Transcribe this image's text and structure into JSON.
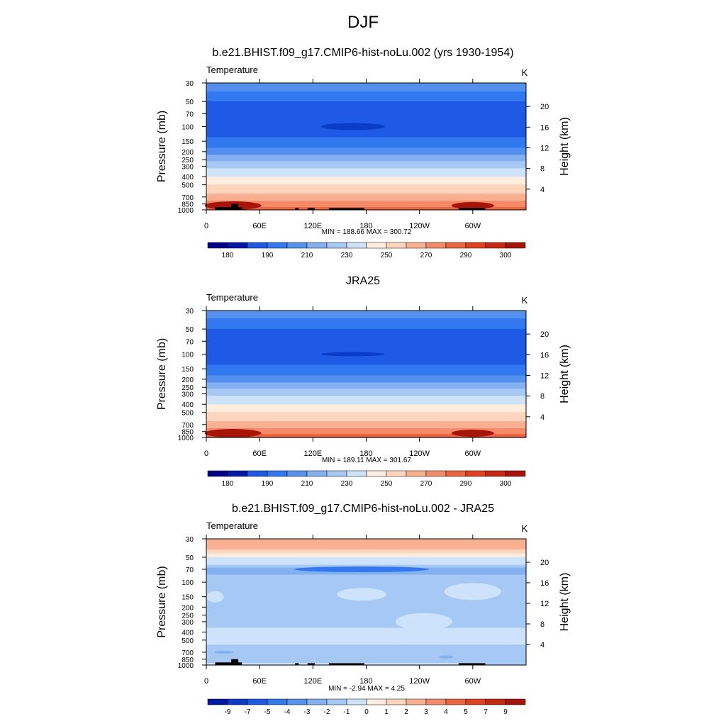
{
  "figure_title": "DJF",
  "palette_rgb": [
    "#00008c",
    "#0019a8",
    "#0a3cc8",
    "#1e5ae6",
    "#3278f0",
    "#5591ef",
    "#82b0f0",
    "#a6c8f5",
    "#cde2fb",
    "#ffeedd",
    "#fdd5bd",
    "#f9b090",
    "#f48a68",
    "#ec6440",
    "#e0421e",
    "#c82810",
    "#a81408",
    "#800000"
  ],
  "common": {
    "variable_label": "Temperature",
    "x_ticks": [
      "0",
      "60E",
      "120E",
      "180",
      "120W",
      "60W"
    ],
    "y_left_label": "Pressure (mb)",
    "y_left_ticks": [
      "30",
      "50",
      "70",
      "100",
      "150",
      "200",
      "250",
      "300",
      "400",
      "500",
      "700",
      "850",
      "1000"
    ],
    "y_right_label": "Height (km)",
    "y_right_ticks": [
      "20",
      "16",
      "12",
      "8",
      "4"
    ]
  },
  "panels": [
    {
      "title": "b.e21.BHIST.f09_g17.CMIP6-hist-noLu.002 (yrs 1930-1954)",
      "variable": "Temperature",
      "units": "K",
      "stats": "MIN = 188.66  MAX = 300.72",
      "colorbar_labels": [
        "180",
        "190",
        "210",
        "230",
        "250",
        "270",
        "290",
        "300"
      ]
    },
    {
      "title": "JRA25",
      "variable": "Temperature",
      "units": "K",
      "stats": "MIN = 189.11  MAX = 301.67",
      "colorbar_labels": [
        "180",
        "190",
        "210",
        "230",
        "250",
        "270",
        "290",
        "300"
      ]
    },
    {
      "title": "b.e21.BHIST.f09_g17.CMIP6-hist-noLu.002 - JRA25",
      "variable": "Temperature",
      "units": "K",
      "stats": "MIN =  -2.94  MAX =   4.25",
      "colorbar_labels": [
        "-9",
        "-7",
        "-5",
        "-4",
        "-3",
        "-2",
        "-1",
        "0",
        "1",
        "2",
        "3",
        "4",
        "5",
        "7",
        "9"
      ]
    }
  ],
  "chart_data": [
    {
      "type": "heatmap",
      "title": "b.e21.BHIST.f09_g17.CMIP6-hist-noLu.002 (yrs 1930-1954)",
      "variable": "Temperature",
      "units": "K",
      "x_ticks": [
        "0",
        "60E",
        "120E",
        "180",
        "120W",
        "60W"
      ],
      "xlim": [
        0,
        360
      ],
      "ylabel": "Pressure (mb)",
      "y2label": "Height (km)",
      "ylim": [
        1000,
        30
      ],
      "y_scale": "log",
      "levels": [
        180,
        185,
        190,
        200,
        210,
        220,
        230,
        240,
        250,
        260,
        270,
        280,
        290,
        295,
        300
      ],
      "min": 188.66,
      "max": 300.72,
      "profile": {
        "pressure": [
          30,
          40,
          50,
          70,
          100,
          150,
          200,
          250,
          300,
          400,
          500,
          700,
          850,
          1000
        ],
        "values": [
          220,
          208,
          200,
          196,
          195,
          202,
          215,
          228,
          238,
          250,
          260,
          274,
          285,
          295
        ]
      },
      "cold_anomaly": {
        "center_lon": 165,
        "pressure": 100,
        "values_below": 190
      }
    },
    {
      "type": "heatmap",
      "title": "JRA25",
      "variable": "Temperature",
      "units": "K",
      "x_ticks": [
        "0",
        "60E",
        "120E",
        "180",
        "120W",
        "60W"
      ],
      "xlim": [
        0,
        360
      ],
      "ylabel": "Pressure (mb)",
      "y2label": "Height (km)",
      "ylim": [
        1000,
        30
      ],
      "y_scale": "log",
      "levels": [
        180,
        185,
        190,
        200,
        210,
        220,
        230,
        240,
        250,
        260,
        270,
        280,
        290,
        295,
        300
      ],
      "min": 189.11,
      "max": 301.67,
      "profile": {
        "pressure": [
          30,
          40,
          50,
          70,
          100,
          150,
          200,
          250,
          300,
          400,
          500,
          700,
          850,
          1000
        ],
        "values": [
          218,
          207,
          200,
          196,
          195,
          202,
          215,
          228,
          238,
          250,
          260,
          274,
          285,
          296
        ]
      },
      "cold_anomaly": {
        "center_lon": 165,
        "pressure": 100,
        "values_below": 190
      }
    },
    {
      "type": "heatmap",
      "title": "b.e21.BHIST.f09_g17.CMIP6-hist-noLu.002 - JRA25",
      "variable": "Temperature",
      "units": "K",
      "x_ticks": [
        "0",
        "60E",
        "120E",
        "180",
        "120W",
        "60W"
      ],
      "xlim": [
        0,
        360
      ],
      "ylabel": "Pressure (mb)",
      "y2label": "Height (km)",
      "ylim": [
        1000,
        30
      ],
      "y_scale": "log",
      "levels": [
        -9,
        -7,
        -5,
        -4,
        -3,
        -2,
        -1,
        0,
        1,
        2,
        3,
        4,
        5,
        7,
        9
      ],
      "min": -2.94,
      "max": 4.25,
      "profile": {
        "pressure": [
          30,
          35,
          40,
          45,
          50,
          60,
          70,
          85,
          100,
          150,
          200,
          300,
          400,
          500,
          700,
          850,
          1000
        ],
        "values": [
          4.0,
          3.5,
          3.0,
          2.0,
          1.0,
          0.2,
          -1.5,
          -0.8,
          -0.5,
          -0.5,
          -0.5,
          -0.5,
          0.3,
          0.3,
          -0.5,
          -0.5,
          0.3
        ]
      }
    }
  ]
}
